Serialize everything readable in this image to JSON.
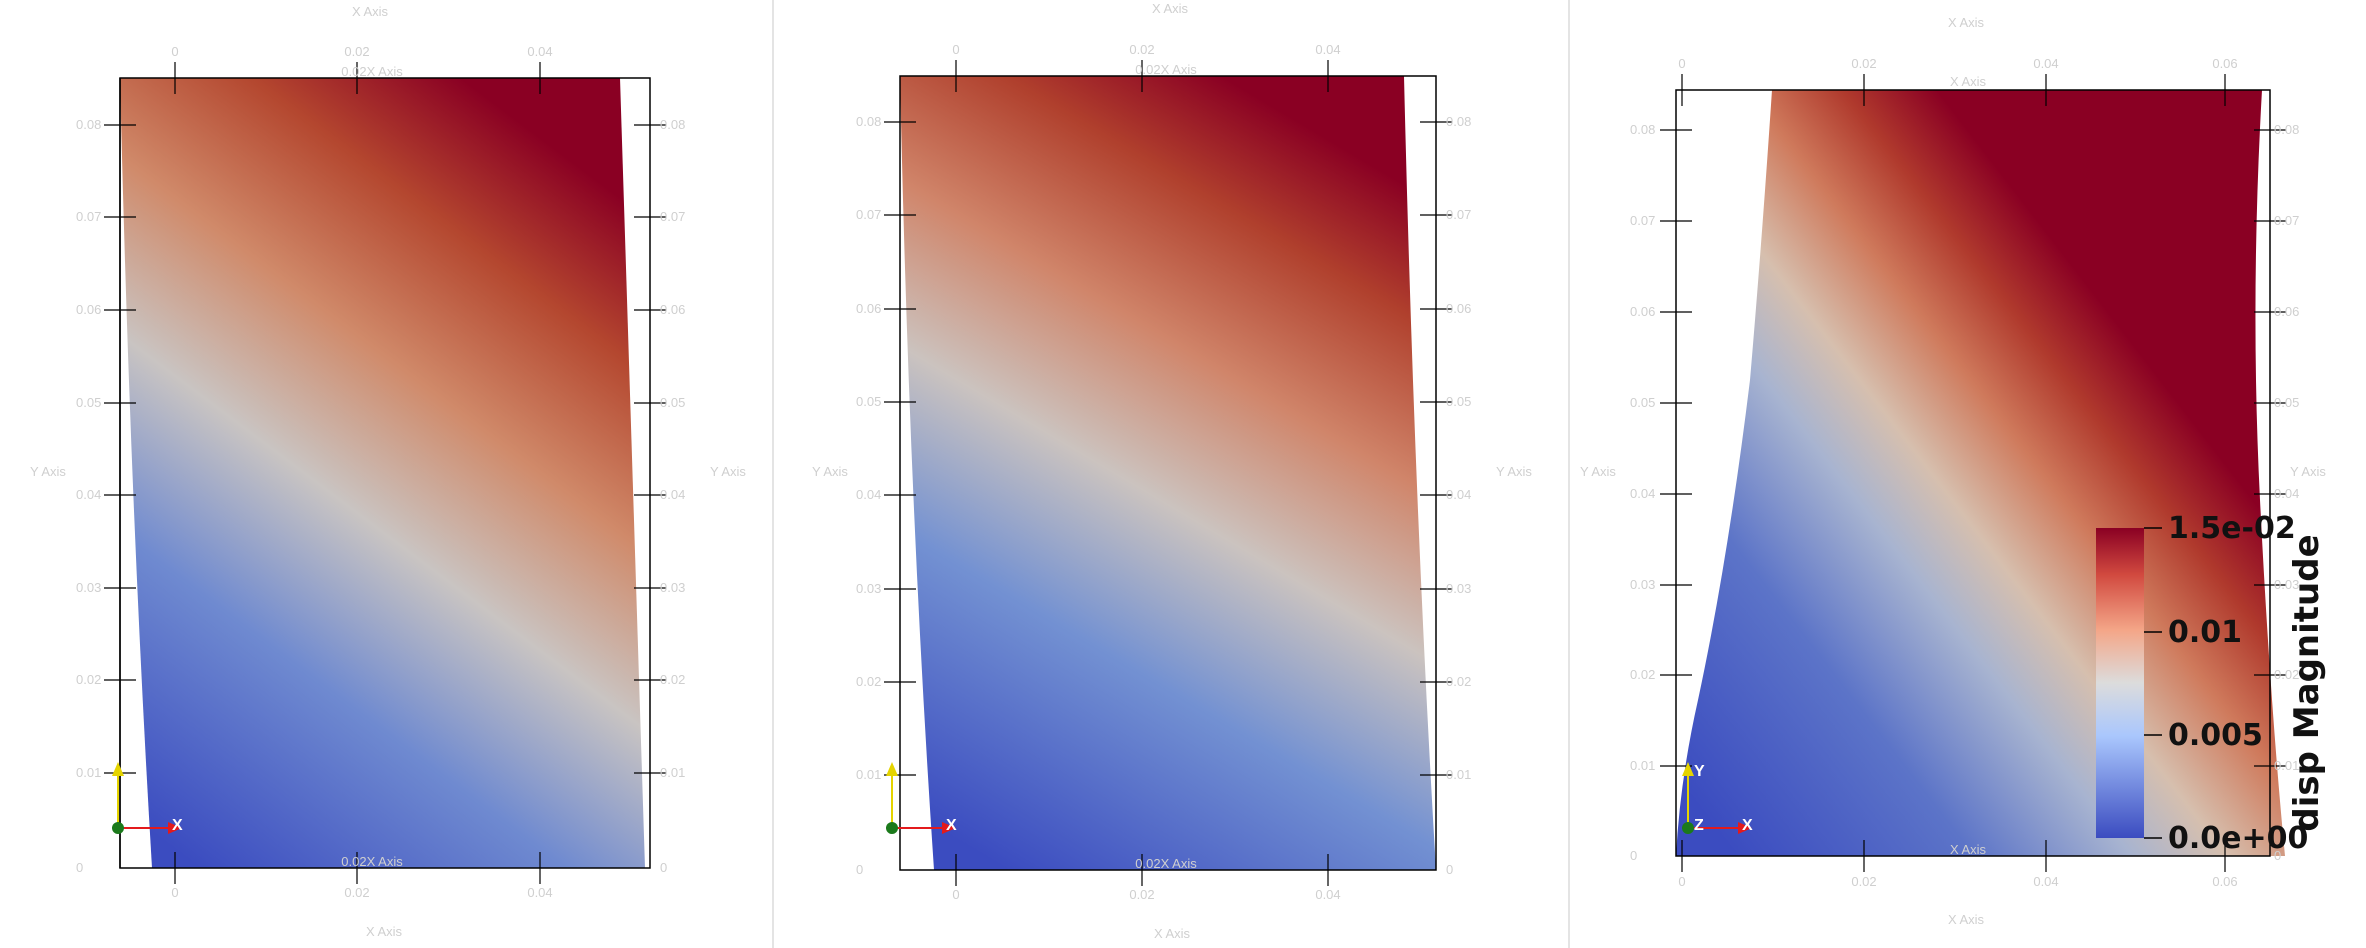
{
  "views": [
    {
      "axis_titles": {
        "x_top": "X Axis",
        "x_bottom": "X Axis",
        "y_left": "Y Axis",
        "y_right": "Y Axis",
        "x_inner_top": "0.02X Axis",
        "x_inner_bottom": "0.02X Axis"
      },
      "x_ticks": [
        "0",
        "0.02",
        "0.04"
      ],
      "y_ticks": [
        "0",
        "0.01",
        "0.02",
        "0.03",
        "0.04",
        "0.05",
        "0.06",
        "0.07",
        "0.08"
      ],
      "triad": {
        "x": "X",
        "y": "",
        "z": ""
      }
    },
    {
      "axis_titles": {
        "x_top": "X Axis",
        "x_bottom": "X Axis",
        "y_left": "Y Axis",
        "y_right": "Y Axis",
        "x_inner_top": "0.02X Axis",
        "x_inner_bottom": "0.02X Axis"
      },
      "x_ticks": [
        "0",
        "0.02",
        "0.04"
      ],
      "y_ticks": [
        "0",
        "0.01",
        "0.02",
        "0.03",
        "0.04",
        "0.05",
        "0.06",
        "0.07",
        "0.08"
      ],
      "triad": {
        "x": "X",
        "y": "",
        "z": ""
      }
    },
    {
      "axis_titles": {
        "x_top": "X Axis",
        "x_bottom": "X Axis",
        "y_left": "Y Axis",
        "y_right": "Y Axis",
        "x_inner_top": "X Axis",
        "x_inner_bottom": "X Axis"
      },
      "x_ticks": [
        "0",
        "0.02",
        "0.04",
        "0.06"
      ],
      "y_ticks": [
        "0",
        "0.01",
        "0.02",
        "0.03",
        "0.04",
        "0.05",
        "0.06",
        "0.07",
        "0.08"
      ],
      "triad": {
        "x": "X",
        "y": "Y",
        "z": "Z"
      }
    }
  ],
  "colorbar": {
    "title": "disp Magnitude",
    "labels": [
      "1.5e-02",
      "0.01",
      "0.005",
      "0.0e+00"
    ],
    "colors": {
      "high": "#8a0023",
      "mid": "#dcdcdc",
      "low": "#3b4cc0"
    }
  },
  "colors": {
    "axis_label": "#cfcfcf",
    "frame": "#000000",
    "triad_x": "#e31a1c",
    "triad_y": "#e5d400",
    "triad_origin": "#1b7a1b"
  }
}
